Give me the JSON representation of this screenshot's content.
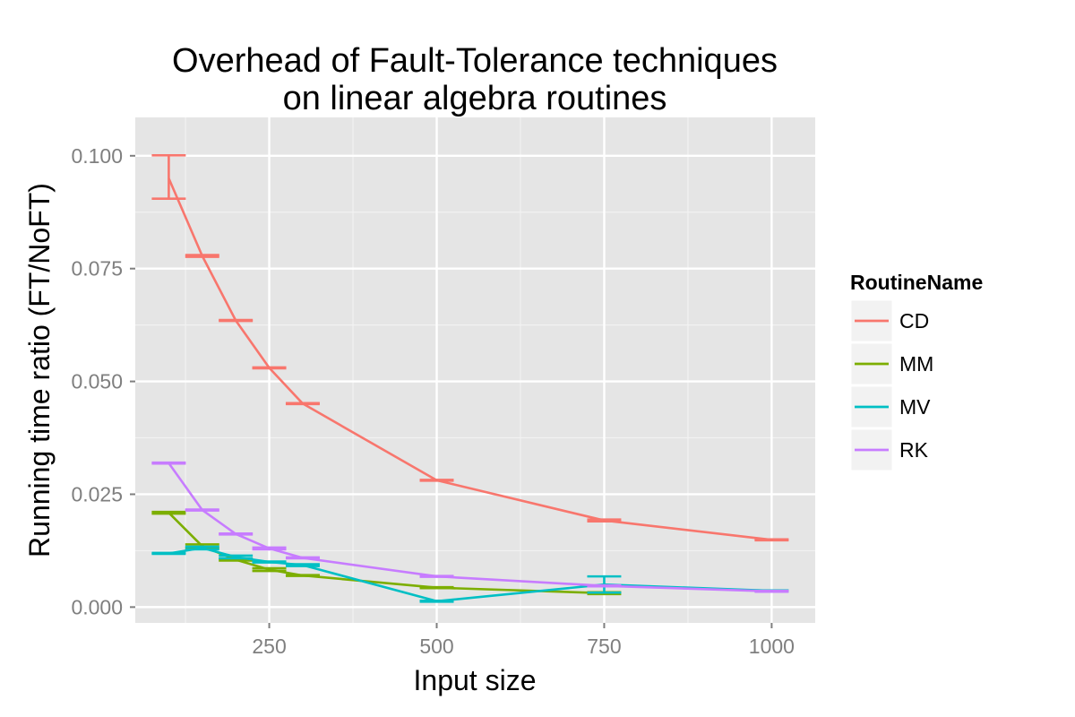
{
  "chart_data": {
    "type": "line",
    "title": [
      "Overhead of Fault-Tolerance techniques",
      "on linear algebra routines"
    ],
    "xlabel": "Input size",
    "ylabel": "Running time ratio (FT/NoFT)",
    "xlim": [
      50,
      1065
    ],
    "ylim": [
      -0.0035,
      0.1085
    ],
    "x_ticks": [
      250,
      500,
      750,
      1000
    ],
    "x_tick_labels": [
      "250",
      "500",
      "750",
      "1000"
    ],
    "y_ticks": [
      0.0,
      0.025,
      0.05,
      0.075,
      0.1
    ],
    "y_tick_labels": [
      "0.000",
      "0.025",
      "0.050",
      "0.075",
      "0.100"
    ],
    "grid": true,
    "legend": {
      "title": "RoutineName",
      "position": "right"
    },
    "series": [
      {
        "name": "CD",
        "color": "#F8766D",
        "points": [
          {
            "x": 100,
            "y": 0.095,
            "ymin": 0.0905,
            "ymax": 0.1001
          },
          {
            "x": 150,
            "y": 0.0778,
            "ymin": 0.0776,
            "ymax": 0.078
          },
          {
            "x": 200,
            "y": 0.0635,
            "ymin": 0.0634,
            "ymax": 0.0636
          },
          {
            "x": 250,
            "y": 0.053,
            "ymin": 0.0529,
            "ymax": 0.0531
          },
          {
            "x": 300,
            "y": 0.0451,
            "ymin": 0.045,
            "ymax": 0.0452
          },
          {
            "x": 500,
            "y": 0.0281,
            "ymin": 0.028,
            "ymax": 0.0282
          },
          {
            "x": 750,
            "y": 0.0192,
            "ymin": 0.019,
            "ymax": 0.0194
          },
          {
            "x": 1000,
            "y": 0.0149,
            "ymin": 0.0148,
            "ymax": 0.015
          }
        ]
      },
      {
        "name": "MM",
        "color": "#7CAE00",
        "points": [
          {
            "x": 100,
            "y": 0.0209,
            "ymin": 0.0207,
            "ymax": 0.0211
          },
          {
            "x": 150,
            "y": 0.0135,
            "ymin": 0.0131,
            "ymax": 0.0139
          },
          {
            "x": 200,
            "y": 0.0105,
            "ymin": 0.0103,
            "ymax": 0.0107
          },
          {
            "x": 250,
            "y": 0.0083,
            "ymin": 0.008,
            "ymax": 0.0086
          },
          {
            "x": 300,
            "y": 0.007,
            "ymin": 0.0069,
            "ymax": 0.0071
          },
          {
            "x": 500,
            "y": 0.0043,
            "ymin": 0.0042,
            "ymax": 0.0044
          },
          {
            "x": 750,
            "y": 0.0031,
            "ymin": 0.0029,
            "ymax": 0.0033
          }
        ]
      },
      {
        "name": "MV",
        "color": "#00BFC4",
        "points": [
          {
            "x": 100,
            "y": 0.0119,
            "ymin": 0.0118,
            "ymax": 0.012
          },
          {
            "x": 150,
            "y": 0.0131,
            "ymin": 0.0128,
            "ymax": 0.0134
          },
          {
            "x": 200,
            "y": 0.0111,
            "ymin": 0.0108,
            "ymax": 0.0114
          },
          {
            "x": 250,
            "y": 0.01,
            "ymin": 0.0099,
            "ymax": 0.0101
          },
          {
            "x": 300,
            "y": 0.0093,
            "ymin": 0.0091,
            "ymax": 0.0095
          },
          {
            "x": 500,
            "y": 0.0013,
            "ymin": 0.0012,
            "ymax": 0.0014
          },
          {
            "x": 750,
            "y": 0.005,
            "ymin": 0.0032,
            "ymax": 0.0068
          },
          {
            "x": 1000,
            "y": 0.0036,
            "ymin": 0.0035,
            "ymax": 0.0037
          }
        ]
      },
      {
        "name": "RK",
        "color": "#C77CFF",
        "points": [
          {
            "x": 100,
            "y": 0.0319,
            "ymin": 0.0318,
            "ymax": 0.032
          },
          {
            "x": 150,
            "y": 0.0215,
            "ymin": 0.0214,
            "ymax": 0.0216
          },
          {
            "x": 200,
            "y": 0.0162,
            "ymin": 0.0161,
            "ymax": 0.0163
          },
          {
            "x": 250,
            "y": 0.013,
            "ymin": 0.0128,
            "ymax": 0.0132
          },
          {
            "x": 300,
            "y": 0.0109,
            "ymin": 0.0108,
            "ymax": 0.011
          },
          {
            "x": 500,
            "y": 0.0068,
            "ymin": 0.0067,
            "ymax": 0.0069
          },
          {
            "x": 750,
            "y": 0.0047,
            "ymin": 0.0046,
            "ymax": 0.0048
          },
          {
            "x": 1000,
            "y": 0.0035,
            "ymin": 0.0034,
            "ymax": 0.0036
          }
        ]
      }
    ]
  }
}
